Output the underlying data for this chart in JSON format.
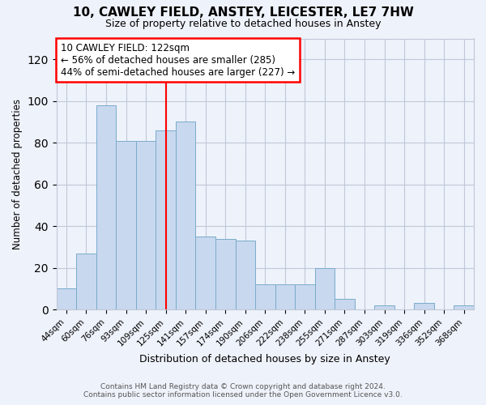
{
  "title1": "10, CAWLEY FIELD, ANSTEY, LEICESTER, LE7 7HW",
  "title2": "Size of property relative to detached houses in Anstey",
  "xlabel": "Distribution of detached houses by size in Anstey",
  "ylabel": "Number of detached properties",
  "categories": [
    "44sqm",
    "60sqm",
    "76sqm",
    "93sqm",
    "109sqm",
    "125sqm",
    "141sqm",
    "157sqm",
    "174sqm",
    "190sqm",
    "206sqm",
    "222sqm",
    "238sqm",
    "255sqm",
    "271sqm",
    "287sqm",
    "303sqm",
    "319sqm",
    "336sqm",
    "352sqm",
    "368sqm"
  ],
  "values": [
    10,
    27,
    98,
    81,
    81,
    86,
    90,
    35,
    34,
    33,
    12,
    12,
    12,
    20,
    5,
    0,
    2,
    0,
    3,
    0,
    2
  ],
  "bar_color": "#c8d8ee",
  "bar_edge_color": "#7aabcc",
  "vline_x": 5,
  "vline_color": "red",
  "annotation_text": "10 CAWLEY FIELD: 122sqm\n← 56% of detached houses are smaller (285)\n44% of semi-detached houses are larger (227) →",
  "annotation_box_color": "white",
  "annotation_box_edge_color": "red",
  "ylim": [
    0,
    130
  ],
  "yticks": [
    0,
    20,
    40,
    60,
    80,
    100,
    120
  ],
  "footer1": "Contains HM Land Registry data © Crown copyright and database right 2024.",
  "footer2": "Contains public sector information licensed under the Open Government Licence v3.0.",
  "bg_color": "#eef2fa",
  "plot_bg_color": "#eef2fa",
  "grid_color": "#c0c8d8"
}
